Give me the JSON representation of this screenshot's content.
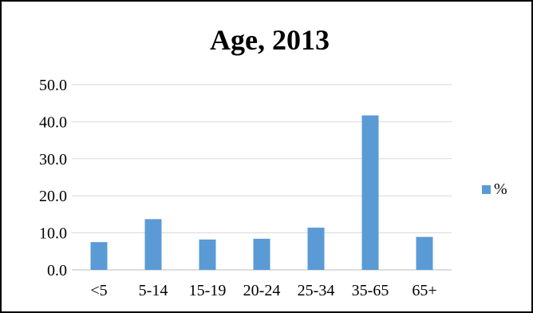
{
  "chart_data": {
    "type": "bar",
    "title": "Age, 2013",
    "categories": [
      "<5",
      "5-14",
      "15-19",
      "20-24",
      "25-34",
      "35-65",
      "65+"
    ],
    "series": [
      {
        "name": "%",
        "values": [
          7.5,
          13.7,
          8.2,
          8.4,
          11.4,
          41.7,
          8.9
        ],
        "color": "#5b9bd5"
      }
    ],
    "yticks": [
      "0.0",
      "10.0",
      "20.0",
      "30.0",
      "40.0",
      "50.0"
    ],
    "ylim": [
      0,
      50
    ],
    "grid": true,
    "legend_position": "right",
    "gridline_color": "#d9d9d9",
    "axis_color": "#bfbfbf"
  }
}
